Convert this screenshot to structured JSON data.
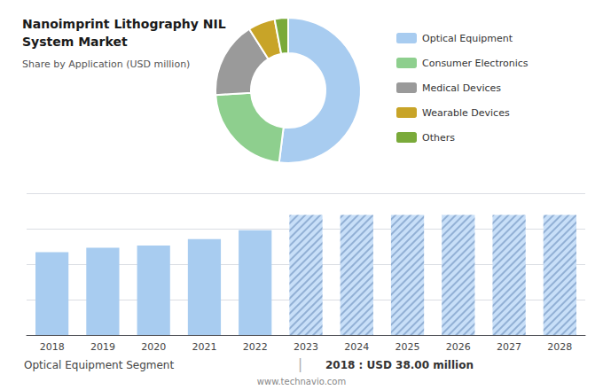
{
  "chart_data": [
    {
      "type": "pie",
      "title": "Nanoimprint Lithography NIL\nSystem Market",
      "subtitle": "Share by Application (USD million)",
      "categories": [
        "Optical Equipment",
        "Consumer Electronics",
        "Medical Devices",
        "Wearable Devices",
        "Others"
      ],
      "values": [
        52,
        22,
        17,
        6,
        3
      ],
      "colors": [
        "#a8ccf0",
        "#8ecf8e",
        "#9a9a9a",
        "#c8a428",
        "#7aaa3a"
      ],
      "legend": "right"
    },
    {
      "type": "bar",
      "categories": [
        "2018",
        "2019",
        "2020",
        "2021",
        "2022",
        "2023",
        "2024",
        "2025",
        "2026",
        "2027",
        "2028"
      ],
      "series": [
        {
          "color": "#a8ccf0",
          "values": [
            38,
            40,
            41,
            44,
            48,
            null,
            null,
            null,
            null,
            null,
            null
          ]
        },
        {
          "color": "#c8dff8",
          "values": [
            null,
            null,
            null,
            null,
            null,
            55,
            55,
            55,
            55,
            55,
            55
          ]
        }
      ],
      "ylim": [
        0,
        65
      ],
      "yticks": [
        0,
        16.25,
        32.5,
        48.75,
        65
      ],
      "grid": true,
      "tick_labels": "x",
      "annotations": [
        "Optical Equipment Segment",
        "|",
        "2018 : USD 38.00 million",
        "www.technavio.com"
      ]
    }
  ]
}
